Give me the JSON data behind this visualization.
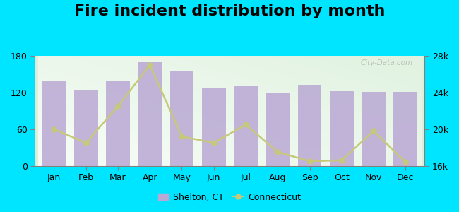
{
  "title": "Fire incident distribution by month",
  "months": [
    "Jan",
    "Feb",
    "Mar",
    "Apr",
    "May",
    "Jun",
    "Jul",
    "Aug",
    "Sep",
    "Oct",
    "Nov",
    "Dec"
  ],
  "shelton_values": [
    140,
    125,
    140,
    170,
    155,
    127,
    130,
    120,
    133,
    122,
    121,
    121
  ],
  "connecticut_values": [
    20000,
    18500,
    22500,
    27000,
    19200,
    18500,
    20500,
    17500,
    16500,
    16600,
    19800,
    16400
  ],
  "bar_color": "#b9a8d4",
  "line_color": "#c8c87a",
  "bg_color_bottom_left": "#c8e8c0",
  "bg_color_top_right": "#f0f8f0",
  "outer_bg": "#00e5ff",
  "left_ylim": [
    0,
    180
  ],
  "left_yticks": [
    0,
    60,
    120,
    180
  ],
  "right_ylim": [
    16000,
    28000
  ],
  "right_yticks": [
    16000,
    20000,
    24000,
    28000
  ],
  "right_yticklabels": [
    "16k",
    "20k",
    "24k",
    "28k"
  ],
  "title_fontsize": 16,
  "tick_fontsize": 9,
  "watermark": "City-Data.com"
}
